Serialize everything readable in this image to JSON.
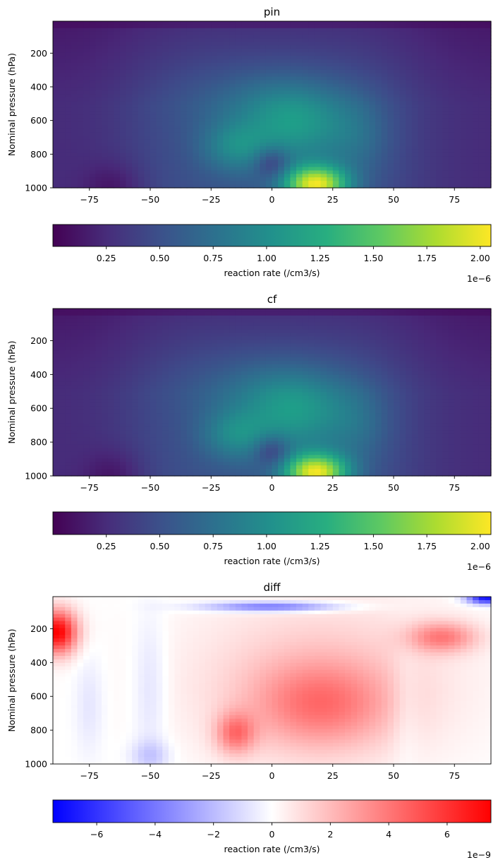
{
  "chart_data": [
    {
      "type": "heatmap",
      "title": "pin",
      "xlabel": "",
      "ylabel": "Nominal pressure (hPa)",
      "xlim": [
        -90,
        90
      ],
      "ylim": [
        1000,
        10
      ],
      "xticks": [
        -75,
        -50,
        -25,
        0,
        25,
        50,
        75
      ],
      "yticks": [
        200,
        400,
        600,
        800,
        1000
      ],
      "colormap": "viridis",
      "field_model": "concentration",
      "features": [
        {
          "lat": 18,
          "pressure": 980,
          "value": 2e-06
        },
        {
          "lat": 10,
          "pressure": 650,
          "value": 1.4e-06
        },
        {
          "lat": -15,
          "pressure": 760,
          "value": 1.35e-06
        },
        {
          "lat": 0,
          "pressure": 500,
          "value": 1.05e-06
        },
        {
          "lat": 35,
          "pressure": 700,
          "value": 1.15e-06
        }
      ],
      "colorbar": {
        "label": "reaction rate (/cm3/s)",
        "min": 0.0,
        "max": 2.05e-06,
        "ticks": [
          "0.25",
          "0.50",
          "0.75",
          "1.00",
          "1.25",
          "1.50",
          "1.75",
          "2.00"
        ],
        "tick_values": [
          0.25,
          0.5,
          0.75,
          1.0,
          1.25,
          1.5,
          1.75,
          2.0
        ],
        "tick_scale": 1e-06,
        "offset_text": "1e−6"
      }
    },
    {
      "type": "heatmap",
      "title": "cf",
      "xlabel": "",
      "ylabel": "Nominal pressure (hPa)",
      "xlim": [
        -90,
        90
      ],
      "ylim": [
        1000,
        10
      ],
      "xticks": [
        -75,
        -50,
        -25,
        0,
        25,
        50,
        75
      ],
      "yticks": [
        200,
        400,
        600,
        800,
        1000
      ],
      "colormap": "viridis",
      "field_model": "concentration",
      "features": [
        {
          "lat": 18,
          "pressure": 980,
          "value": 2e-06
        },
        {
          "lat": 10,
          "pressure": 650,
          "value": 1.4e-06
        },
        {
          "lat": -15,
          "pressure": 760,
          "value": 1.35e-06
        },
        {
          "lat": 0,
          "pressure": 500,
          "value": 1.05e-06
        },
        {
          "lat": 35,
          "pressure": 700,
          "value": 1.15e-06
        }
      ],
      "colorbar": {
        "label": "reaction rate (/cm3/s)",
        "min": 0.0,
        "max": 2.05e-06,
        "ticks": [
          "0.25",
          "0.50",
          "0.75",
          "1.00",
          "1.25",
          "1.50",
          "1.75",
          "2.00"
        ],
        "tick_values": [
          0.25,
          0.5,
          0.75,
          1.0,
          1.25,
          1.5,
          1.75,
          2.0
        ],
        "tick_scale": 1e-06,
        "offset_text": "1e−6"
      }
    },
    {
      "type": "heatmap",
      "title": "diff",
      "xlabel": "",
      "ylabel": "Nominal pressure (hPa)",
      "xlim": [
        -90,
        90
      ],
      "ylim": [
        1000,
        10
      ],
      "xticks": [
        -75,
        -50,
        -25,
        0,
        25,
        50,
        75
      ],
      "yticks": [
        200,
        400,
        600,
        800,
        1000
      ],
      "colormap": "bwr",
      "field_model": "difference",
      "features": [
        {
          "lat": -88,
          "pressure": 220,
          "value": 7.5e-09
        },
        {
          "lat": 0,
          "pressure": 70,
          "value": -4.5e-09
        },
        {
          "lat": 88,
          "pressure": 20,
          "value": -7e-09
        },
        {
          "lat": 20,
          "pressure": 650,
          "value": 3e-09
        },
        {
          "lat": -15,
          "pressure": 820,
          "value": 3.5e-09
        },
        {
          "lat": 70,
          "pressure": 250,
          "value": 3.5e-09
        },
        {
          "lat": -50,
          "pressure": 950,
          "value": -1.5e-09
        },
        {
          "lat": 55,
          "pressure": 500,
          "value": 0.0
        }
      ],
      "colorbar": {
        "label": "reaction rate (/cm3/s)",
        "min": -7.5e-09,
        "max": 7.5e-09,
        "ticks": [
          "−6",
          "−4",
          "−2",
          "0",
          "2",
          "4",
          "6"
        ],
        "tick_values": [
          -6,
          -4,
          -2,
          0,
          2,
          4,
          6
        ],
        "tick_scale": 1e-09,
        "offset_text": "1e−9"
      }
    }
  ]
}
